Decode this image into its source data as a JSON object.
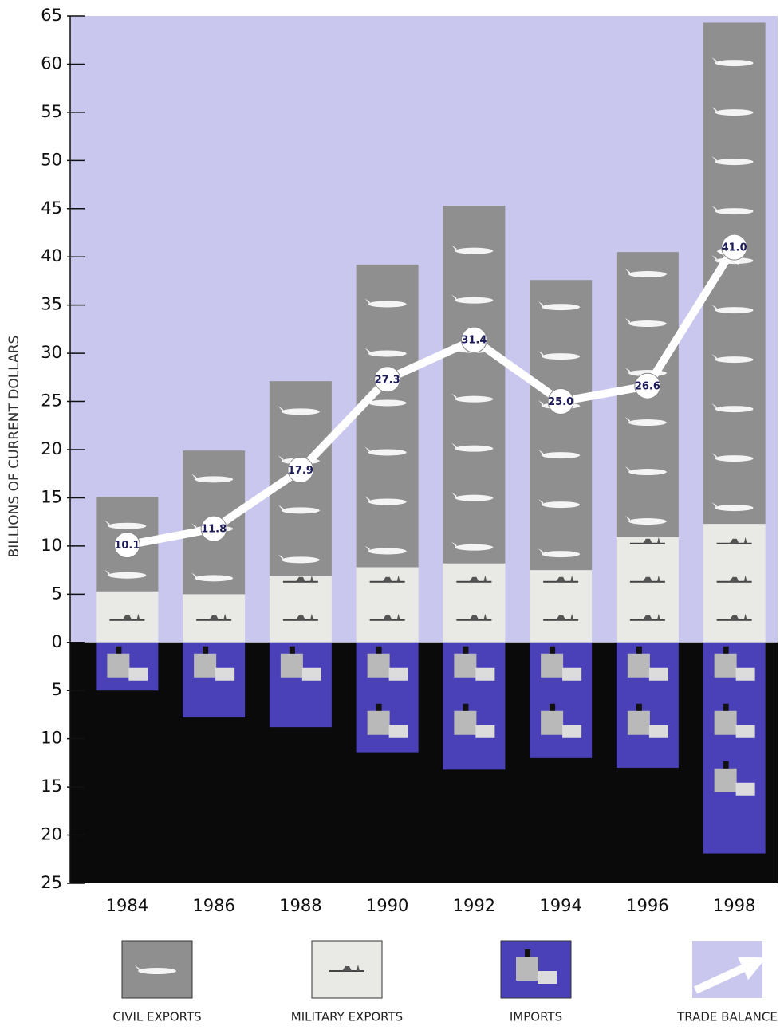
{
  "chart_data": {
    "type": "bar",
    "stacked": true,
    "y_axis_label": "BILLIONS OF CURRENT DOLLARS",
    "categories": [
      "1984",
      "1986",
      "1988",
      "1990",
      "1992",
      "1994",
      "1996",
      "1998"
    ],
    "series": [
      {
        "name": "MILITARY EXPORTS",
        "color": "#e9e9e6",
        "values": [
          5.3,
          5.0,
          6.9,
          7.8,
          8.2,
          7.5,
          10.9,
          12.3
        ]
      },
      {
        "name": "CIVIL EXPORTS",
        "color": "#8f8f8f",
        "values": [
          9.8,
          14.9,
          20.2,
          31.4,
          37.1,
          30.1,
          29.6,
          52.0
        ]
      },
      {
        "name": "IMPORTS",
        "color": "#4a40b8",
        "values": [
          -5.0,
          -7.8,
          -8.8,
          -11.4,
          -13.2,
          -12.0,
          -13.0,
          -21.9
        ]
      },
      {
        "name": "TRADE BALANCE",
        "type": "line",
        "color": "#ffffff",
        "values": [
          10.1,
          11.8,
          17.9,
          27.3,
          31.4,
          25.0,
          26.6,
          41.0
        ],
        "value_labels": [
          "10.1",
          "11.8",
          "17.9",
          "27.3",
          "31.4",
          "25.0",
          "26.6",
          "41.0"
        ]
      }
    ],
    "legend_order": [
      1,
      0,
      2,
      3
    ],
    "ylim": [
      -25,
      65
    ],
    "yticks": [
      65,
      60,
      55,
      50,
      45,
      40,
      35,
      30,
      25,
      20,
      15,
      10,
      5,
      0,
      {
        "value": -5,
        "label": "5"
      },
      {
        "value": -10,
        "label": "10"
      },
      {
        "value": -15,
        "label": "15"
      },
      {
        "value": -20,
        "label": "20"
      },
      {
        "value": -25,
        "label": "25"
      }
    ],
    "upper_background": "#c9c7ee",
    "lower_background": "#0a0a0a"
  }
}
